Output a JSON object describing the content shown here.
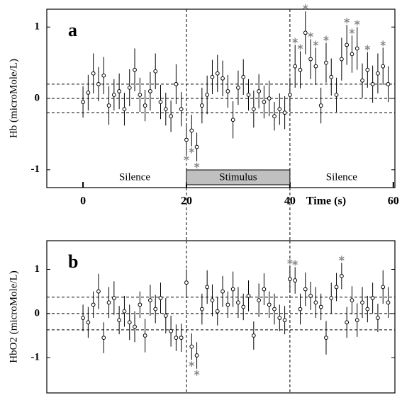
{
  "chart_data": [
    {
      "type": "scatter",
      "panel_label": "a",
      "ylabel": "Hb (microMole/L)",
      "xlabel": "Time (s)",
      "x": [
        0,
        1,
        2,
        3,
        4,
        5,
        6,
        7,
        8,
        9,
        10,
        11,
        12,
        13,
        14,
        15,
        16,
        17,
        18,
        19,
        20,
        21,
        22,
        23,
        24,
        25,
        26,
        27,
        28,
        29,
        30,
        31,
        32,
        33,
        34,
        35,
        36,
        37,
        38,
        39,
        40,
        41,
        42,
        43,
        44,
        45,
        46,
        47,
        48,
        49,
        50,
        51,
        52,
        53,
        54,
        55,
        56,
        57,
        58,
        59
      ],
      "values": [
        -0.05,
        0.08,
        0.35,
        0.2,
        0.32,
        -0.1,
        0.05,
        0.1,
        -0.15,
        0.15,
        0.4,
        0.05,
        -0.1,
        0.1,
        0.38,
        -0.05,
        -0.15,
        -0.25,
        0.2,
        -0.15,
        -0.58,
        -0.45,
        -0.68,
        -0.1,
        0.05,
        0.3,
        0.35,
        0.28,
        0.1,
        -0.3,
        0.15,
        0.3,
        0.05,
        -0.15,
        0.1,
        -0.05,
        0.0,
        -0.25,
        -0.15,
        -0.2,
        0.05,
        0.45,
        0.4,
        0.92,
        0.55,
        0.45,
        -0.1,
        0.5,
        0.3,
        0.05,
        0.55,
        0.75,
        0.62,
        0.7,
        0.25,
        0.4,
        0.2,
        0.35,
        0.45,
        0.2
      ],
      "errors": [
        0.22,
        0.25,
        0.28,
        0.24,
        0.26,
        0.27,
        0.22,
        0.25,
        0.23,
        0.26,
        0.3,
        0.24,
        0.22,
        0.27,
        0.25,
        0.24,
        0.23,
        0.22,
        0.28,
        0.24,
        0.2,
        0.22,
        0.2,
        0.25,
        0.27,
        0.24,
        0.26,
        0.25,
        0.23,
        0.26,
        0.24,
        0.25,
        0.22,
        0.26,
        0.24,
        0.23,
        0.25,
        0.2,
        0.22,
        0.23,
        0.24,
        0.3,
        0.26,
        0.3,
        0.28,
        0.26,
        0.25,
        0.28,
        0.26,
        0.24,
        0.3,
        0.28,
        0.26,
        0.3,
        0.24,
        0.25,
        0.26,
        0.28,
        0.26,
        0.25
      ],
      "significant": [
        20,
        21,
        22,
        41,
        42,
        43,
        44,
        45,
        47,
        51,
        52,
        53,
        55,
        58
      ],
      "xlim": [
        -7,
        60.3
      ],
      "ylim": [
        -1.25,
        1.25
      ],
      "yticks": [
        -1,
        0,
        1
      ],
      "xticks": [
        0,
        20,
        40,
        60
      ],
      "thresholds": [
        -0.2,
        0,
        0.2
      ],
      "markers": [
        20,
        40
      ],
      "periods": [
        {
          "label": "Silence",
          "start": 0,
          "end": 20
        },
        {
          "label": "Stimulus",
          "start": 20,
          "end": 40,
          "highlight": true
        },
        {
          "label": "Silence",
          "start": 40,
          "end": 60
        }
      ]
    },
    {
      "type": "scatter",
      "panel_label": "b",
      "ylabel": "HbO2 (microMole/L)",
      "x": [
        0,
        1,
        2,
        3,
        4,
        5,
        6,
        7,
        8,
        9,
        10,
        11,
        12,
        13,
        14,
        15,
        16,
        17,
        18,
        19,
        20,
        21,
        22,
        23,
        24,
        25,
        26,
        27,
        28,
        29,
        30,
        31,
        32,
        33,
        34,
        35,
        36,
        37,
        38,
        39,
        40,
        41,
        42,
        43,
        44,
        45,
        46,
        47,
        48,
        49,
        50,
        51,
        52,
        53,
        54,
        55,
        56,
        57,
        58,
        59
      ],
      "values": [
        -0.1,
        -0.2,
        0.2,
        0.5,
        -0.55,
        0.25,
        0.35,
        -0.15,
        0.05,
        -0.2,
        -0.3,
        0.2,
        -0.5,
        0.3,
        0.1,
        0.35,
        -0.05,
        -0.4,
        -0.55,
        -0.55,
        0.7,
        -0.75,
        -0.95,
        0.1,
        0.6,
        0.3,
        0.05,
        0.5,
        0.2,
        0.55,
        0.25,
        0.15,
        0.4,
        -0.5,
        0.3,
        0.55,
        0.2,
        0.1,
        -0.1,
        -0.15,
        0.78,
        0.75,
        0.1,
        0.55,
        0.4,
        0.25,
        0.15,
        -0.55,
        0.35,
        0.6,
        0.85,
        -0.2,
        0.3,
        -0.15,
        0.25,
        0.1,
        0.35,
        -0.1,
        0.6,
        0.25
      ],
      "errors": [
        0.3,
        0.35,
        0.3,
        0.4,
        0.35,
        0.35,
        0.38,
        0.32,
        0.35,
        0.4,
        0.35,
        0.3,
        0.38,
        0.35,
        0.32,
        0.35,
        0.4,
        0.35,
        0.3,
        0.32,
        0.3,
        0.3,
        0.3,
        0.35,
        0.38,
        0.36,
        0.32,
        0.35,
        0.3,
        0.4,
        0.35,
        0.3,
        0.35,
        0.32,
        0.38,
        0.36,
        0.3,
        0.35,
        0.3,
        0.32,
        0.3,
        0.3,
        0.35,
        0.38,
        0.32,
        0.35,
        0.3,
        0.38,
        0.35,
        0.32,
        0.3,
        0.35,
        0.32,
        0.38,
        0.35,
        0.3,
        0.35,
        0.32,
        0.38,
        0.35
      ],
      "significant": [
        21,
        22,
        40,
        41,
        50
      ],
      "xlim": [
        -7,
        60.3
      ],
      "ylim": [
        -1.8,
        1.65
      ],
      "yticks": [
        -1,
        0,
        1
      ],
      "thresholds": [
        -0.37,
        0,
        0.37
      ],
      "markers": [
        20,
        40
      ]
    }
  ]
}
